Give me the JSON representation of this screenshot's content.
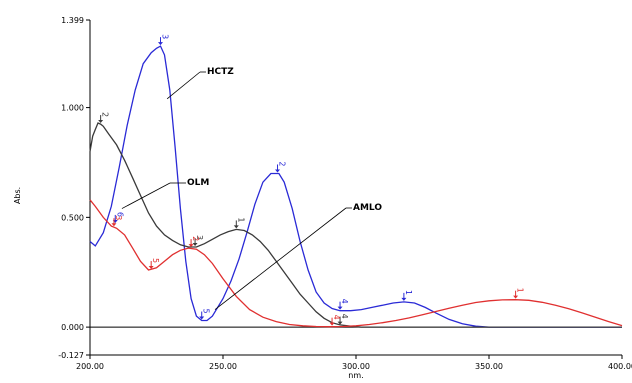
{
  "chart_data": {
    "type": "line",
    "xlabel": "nm.",
    "ylabel": "Abs.",
    "xlim": [
      200,
      400
    ],
    "ylim": [
      -0.127,
      1.399
    ],
    "x_ticks": [
      {
        "value": 200,
        "label": "200.00"
      },
      {
        "value": 250,
        "label": "250.00"
      },
      {
        "value": 300,
        "label": "300.00"
      },
      {
        "value": 350,
        "label": "350.00"
      },
      {
        "value": 400,
        "label": "400.00"
      }
    ],
    "y_ticks": [
      {
        "value": -0.127,
        "label": "-0.127"
      },
      {
        "value": 0.0,
        "label": "0.000"
      },
      {
        "value": 0.5,
        "label": "0.500"
      },
      {
        "value": 1.0,
        "label": "1.000"
      },
      {
        "value": 1.399,
        "label": "1.399"
      }
    ],
    "colors": {
      "HCTZ": "#2a2ad6",
      "OLM": "#3a3a3a",
      "AMLO": "#e03030"
    },
    "series": [
      {
        "name": "HCTZ",
        "x": [
          200,
          202,
          205,
          208,
          211,
          214,
          217,
          220,
          223,
          225,
          226.5,
          228,
          230,
          232,
          234,
          236,
          238,
          240,
          242,
          244,
          246,
          250,
          253,
          256,
          259,
          262,
          265,
          268,
          271,
          273,
          276,
          279,
          282,
          285,
          288,
          291,
          294,
          298,
          302,
          306,
          310,
          314,
          318,
          322,
          326,
          330,
          335,
          340,
          345,
          350,
          360,
          380,
          400
        ],
        "y": [
          0.39,
          0.37,
          0.43,
          0.55,
          0.73,
          0.92,
          1.08,
          1.2,
          1.25,
          1.27,
          1.28,
          1.24,
          1.08,
          0.82,
          0.54,
          0.3,
          0.13,
          0.05,
          0.03,
          0.03,
          0.05,
          0.13,
          0.21,
          0.31,
          0.43,
          0.56,
          0.66,
          0.7,
          0.7,
          0.66,
          0.54,
          0.39,
          0.26,
          0.16,
          0.11,
          0.085,
          0.075,
          0.075,
          0.08,
          0.09,
          0.1,
          0.11,
          0.115,
          0.11,
          0.09,
          0.065,
          0.035,
          0.015,
          0.004,
          0.0,
          0.0,
          0.0,
          0.0
        ]
      },
      {
        "name": "OLM",
        "x": [
          200,
          201,
          202,
          203,
          204,
          205,
          207,
          210,
          213,
          216,
          219,
          222,
          225,
          228,
          231,
          234,
          237,
          240,
          243,
          246,
          249,
          252,
          255,
          258,
          261,
          264,
          267,
          270,
          273,
          276,
          279,
          282,
          285,
          288,
          291,
          294,
          298,
          302,
          310,
          330,
          350,
          400
        ],
        "y": [
          0.8,
          0.87,
          0.9,
          0.93,
          0.925,
          0.915,
          0.88,
          0.83,
          0.76,
          0.68,
          0.6,
          0.52,
          0.46,
          0.42,
          0.395,
          0.375,
          0.365,
          0.365,
          0.38,
          0.4,
          0.42,
          0.435,
          0.445,
          0.44,
          0.42,
          0.39,
          0.35,
          0.3,
          0.25,
          0.2,
          0.15,
          0.11,
          0.07,
          0.04,
          0.02,
          0.01,
          0.004,
          0.0,
          0.0,
          0.0,
          0.0,
          0.0
        ]
      },
      {
        "name": "AMLO",
        "x": [
          200,
          202,
          205,
          208,
          210,
          213,
          216,
          219,
          222,
          225,
          228,
          231,
          234,
          237,
          240,
          243,
          246,
          250,
          255,
          260,
          265,
          270,
          275,
          280,
          285,
          290,
          295,
          300,
          305,
          310,
          315,
          320,
          325,
          330,
          335,
          340,
          345,
          350,
          355,
          360,
          365,
          370,
          375,
          380,
          385,
          390,
          395,
          400
        ],
        "y": [
          0.58,
          0.55,
          0.5,
          0.46,
          0.45,
          0.42,
          0.36,
          0.3,
          0.26,
          0.27,
          0.3,
          0.33,
          0.35,
          0.36,
          0.355,
          0.33,
          0.29,
          0.22,
          0.14,
          0.08,
          0.045,
          0.025,
          0.012,
          0.006,
          0.003,
          0.002,
          0.003,
          0.006,
          0.012,
          0.02,
          0.03,
          0.042,
          0.056,
          0.071,
          0.086,
          0.1,
          0.112,
          0.12,
          0.124,
          0.125,
          0.122,
          0.113,
          0.1,
          0.084,
          0.065,
          0.045,
          0.025,
          0.007
        ]
      }
    ],
    "annotations": [
      {
        "series": "OLM",
        "label": "OLM",
        "arrow_x": 212,
        "arrow_y": 0.54
      },
      {
        "series": "HCTZ",
        "label": "HCTZ",
        "arrow_x": 229,
        "arrow_y": 1.04
      },
      {
        "series": "AMLO",
        "label": "AMLO",
        "arrow_x": 247,
        "arrow_y": 0.08
      }
    ],
    "peak_markers": [
      {
        "series": "OLM",
        "x": 204,
        "y": 0.925,
        "label": "2"
      },
      {
        "series": "OLM",
        "x": 255,
        "y": 0.445,
        "label": "1"
      },
      {
        "series": "OLM",
        "x": 239.5,
        "y": 0.365,
        "label": "3"
      },
      {
        "series": "OLM",
        "x": 294,
        "y": 0.007,
        "label": "4"
      },
      {
        "series": "HCTZ",
        "x": 226.5,
        "y": 1.28,
        "label": "3"
      },
      {
        "series": "HCTZ",
        "x": 270.5,
        "y": 0.7,
        "label": "2"
      },
      {
        "series": "HCTZ",
        "x": 318,
        "y": 0.115,
        "label": "1"
      },
      {
        "series": "HCTZ",
        "x": 209.5,
        "y": 0.47,
        "label": "6"
      },
      {
        "series": "HCTZ",
        "x": 242,
        "y": 0.03,
        "label": "5"
      },
      {
        "series": "HCTZ",
        "x": 294,
        "y": 0.075,
        "label": "4"
      },
      {
        "series": "AMLO",
        "x": 360,
        "y": 0.125,
        "label": "1"
      },
      {
        "series": "AMLO",
        "x": 238,
        "y": 0.36,
        "label": "2"
      },
      {
        "series": "AMLO",
        "x": 209,
        "y": 0.455,
        "label": "3"
      },
      {
        "series": "AMLO",
        "x": 223,
        "y": 0.26,
        "label": "5"
      },
      {
        "series": "AMLO",
        "x": 291,
        "y": 0.002,
        "label": "4"
      }
    ]
  }
}
